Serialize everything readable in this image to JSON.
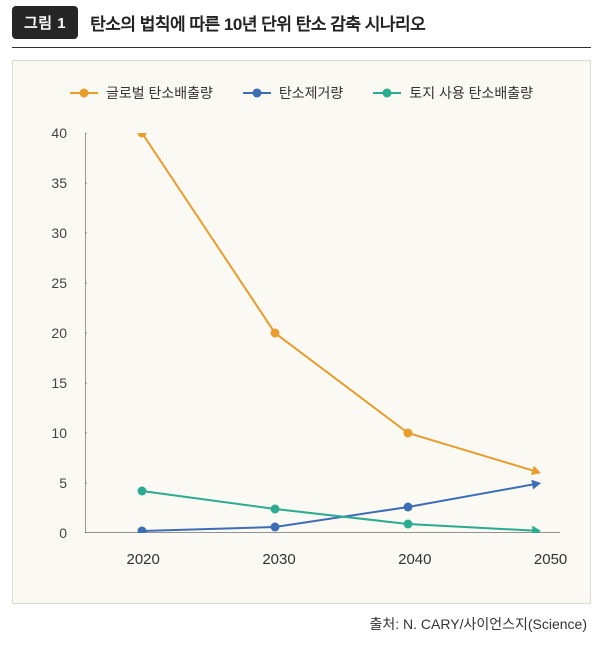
{
  "header": {
    "badge": "그림 1",
    "title": "탄소의 법칙에 따른 10년 단위 탄소 감축 시나리오"
  },
  "chart": {
    "type": "line",
    "background_color": "#faf9f3",
    "border_color": "#dadacf",
    "axis_color": "#555555",
    "tick_color": "#888888",
    "label_color": "#333333",
    "label_fontsize": 14,
    "ylim": [
      0,
      40
    ],
    "yticks": [
      0,
      5,
      10,
      15,
      20,
      25,
      30,
      35,
      40
    ],
    "categories": [
      "2020",
      "2030",
      "2040",
      "2050"
    ],
    "x_positions_pct": [
      12,
      40,
      68,
      96
    ],
    "marker_radius": 4.5,
    "line_width": 2,
    "arrow_size": 9,
    "legend": {
      "font_size": 14,
      "gap": 30
    },
    "series": [
      {
        "id": "global-emissions",
        "label": "글로벌 탄소배출량",
        "color": "#e89c2c",
        "values": [
          40,
          20,
          10,
          6
        ],
        "arrow_end": true
      },
      {
        "id": "carbon-removal",
        "label": "탄소제거량",
        "color": "#3d6db5",
        "values": [
          0.2,
          0.6,
          2.6,
          5
        ],
        "arrow_end": true
      },
      {
        "id": "land-use-emissions",
        "label": "토지 사용 탄소배출량",
        "color": "#2bab8f",
        "values": [
          4.2,
          2.4,
          0.9,
          0.2
        ],
        "arrow_end": true
      }
    ]
  },
  "source": {
    "prefix": "출처: ",
    "text": "N. CARY/사이언스지(Science)"
  }
}
